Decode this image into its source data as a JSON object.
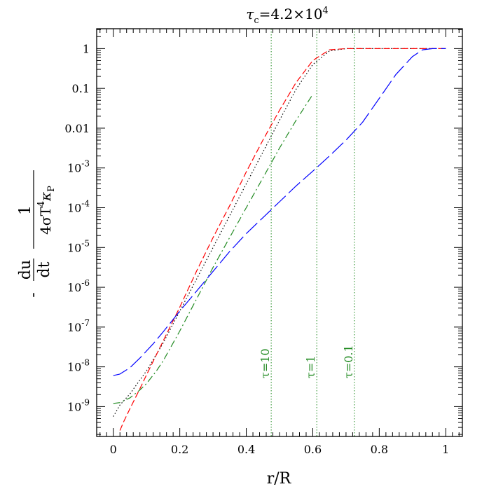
{
  "chart_data": {
    "type": "line",
    "title": "τc=4.2×10⁴",
    "title_parts": {
      "symbol": "τ",
      "sub": "c",
      "rest": "=4.2×10",
      "exp": "4"
    },
    "xlabel": "r/R",
    "ylabel": "- du/dt · 1/(4σT⁴κP)",
    "ylabel_parts": {
      "minus": "-",
      "num1": "du",
      "den1": "dt",
      "num2": "1",
      "den2_a": "4σT",
      "den2_exp": "4",
      "den2_b": "κ",
      "den2_sub": "P"
    },
    "xlim": [
      -0.05,
      1.05
    ],
    "ylim_log10": [
      -9.75,
      0.5
    ],
    "yscale": "log",
    "x_ticks": [
      {
        "value": 0,
        "label": "0"
      },
      {
        "value": 0.2,
        "label": "0.2"
      },
      {
        "value": 0.4,
        "label": "0.4"
      },
      {
        "value": 0.6,
        "label": "0.6"
      },
      {
        "value": 0.8,
        "label": "0.8"
      },
      {
        "value": 1,
        "label": "1"
      }
    ],
    "y_ticks": [
      {
        "exp": 0,
        "label": "1"
      },
      {
        "exp": -1,
        "label": "0.1"
      },
      {
        "exp": -2,
        "label": "0.01"
      },
      {
        "exp": -3,
        "mant": "10",
        "sup": "-3"
      },
      {
        "exp": -4,
        "mant": "10",
        "sup": "-4"
      },
      {
        "exp": -5,
        "mant": "10",
        "sup": "-5"
      },
      {
        "exp": -6,
        "mant": "10",
        "sup": "-6"
      },
      {
        "exp": -7,
        "mant": "10",
        "sup": "-7"
      },
      {
        "exp": -8,
        "mant": "10",
        "sup": "-8"
      },
      {
        "exp": -9,
        "mant": "10",
        "sup": "-9"
      }
    ],
    "grid": false,
    "vertical_markers": [
      {
        "x": 0.475,
        "label": "τ=10",
        "color": "#228b22"
      },
      {
        "x": 0.612,
        "label": "τ=1",
        "color": "#228b22"
      },
      {
        "x": 0.725,
        "label": "τ=0.1",
        "color": "#228b22"
      }
    ],
    "series": [
      {
        "color": "#000000",
        "dash": "1.5,3",
        "width": 1.2,
        "x": [
          0,
          0.02,
          0.05,
          0.1,
          0.15,
          0.2,
          0.25,
          0.3,
          0.35,
          0.4,
          0.45,
          0.5,
          0.55,
          0.6,
          0.65,
          0.7,
          0.75,
          0.8,
          0.9,
          1.0
        ],
        "log10_y": [
          -9.25,
          -8.96,
          -8.68,
          -8.1,
          -7.4,
          -6.6,
          -5.8,
          -5.0,
          -4.2,
          -3.4,
          -2.6,
          -1.8,
          -1.02,
          -0.4,
          -0.06,
          0,
          0,
          0,
          0,
          0
        ]
      },
      {
        "color": "#ff0000",
        "dash": "9,4",
        "width": 1.2,
        "x": [
          0.02,
          0.03,
          0.05,
          0.08,
          0.1,
          0.15,
          0.2,
          0.25,
          0.3,
          0.35,
          0.4,
          0.45,
          0.5,
          0.55,
          0.6,
          0.65,
          0.7,
          0.75,
          0.8,
          0.9,
          1.0
        ],
        "log10_y": [
          -9.6,
          -9.4,
          -9.05,
          -8.55,
          -8.2,
          -7.35,
          -6.5,
          -5.6,
          -4.75,
          -3.95,
          -3.1,
          -2.3,
          -1.55,
          -0.85,
          -0.3,
          -0.03,
          0,
          0,
          0,
          0,
          0
        ]
      },
      {
        "color": "#228b22",
        "dash": "10,4,2,4",
        "width": 1.2,
        "x": [
          0,
          0.02,
          0.05,
          0.08,
          0.1,
          0.13,
          0.15,
          0.2,
          0.25,
          0.3,
          0.35,
          0.4,
          0.45,
          0.5,
          0.55,
          0.6
        ],
        "log10_y": [
          -8.92,
          -8.9,
          -8.78,
          -8.58,
          -8.42,
          -8.1,
          -7.85,
          -7.1,
          -6.3,
          -5.5,
          -4.75,
          -4.0,
          -3.25,
          -2.5,
          -1.8,
          -1.15
        ]
      },
      {
        "color": "#0000ff",
        "dash": "22,6",
        "width": 1.2,
        "x": [
          0,
          0.02,
          0.05,
          0.08,
          0.1,
          0.12,
          0.15,
          0.2,
          0.25,
          0.3,
          0.35,
          0.4,
          0.45,
          0.5,
          0.55,
          0.6,
          0.65,
          0.7,
          0.75,
          0.8,
          0.85,
          0.9,
          0.93,
          0.96,
          1.0
        ],
        "log10_y": [
          -8.22,
          -8.18,
          -8.02,
          -7.78,
          -7.6,
          -7.42,
          -7.12,
          -6.6,
          -6.1,
          -5.6,
          -5.1,
          -4.65,
          -4.25,
          -3.85,
          -3.45,
          -3.08,
          -2.7,
          -2.3,
          -1.85,
          -1.25,
          -0.65,
          -0.2,
          -0.03,
          0,
          0
        ]
      }
    ]
  }
}
